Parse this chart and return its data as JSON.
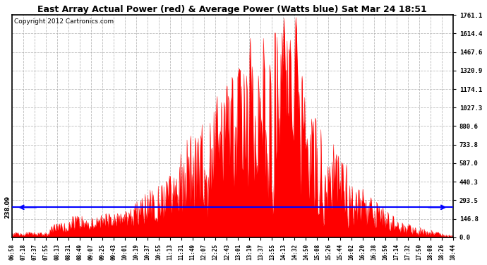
{
  "title": "East Array Actual Power (red) & Average Power (Watts blue) Sat Mar 24 18:51",
  "copyright": "Copyright 2012 Cartronics.com",
  "avg_power": 238.09,
  "y_max": 1761.1,
  "y_ticks": [
    0.0,
    146.8,
    293.5,
    440.3,
    587.0,
    733.8,
    880.6,
    1027.3,
    1174.1,
    1320.9,
    1467.6,
    1614.4,
    1761.1
  ],
  "background_color": "#ffffff",
  "fill_color": "#ff0000",
  "avg_line_color": "#0000ff",
  "title_fontsize": 9,
  "copyright_fontsize": 6.5,
  "time_labels": [
    "06:58",
    "07:18",
    "07:37",
    "07:55",
    "08:13",
    "08:31",
    "08:49",
    "09:07",
    "09:25",
    "09:43",
    "10:01",
    "10:19",
    "10:37",
    "10:55",
    "11:13",
    "11:31",
    "11:49",
    "12:07",
    "12:25",
    "12:43",
    "13:01",
    "13:19",
    "13:37",
    "13:55",
    "14:13",
    "14:32",
    "14:50",
    "15:08",
    "15:26",
    "15:44",
    "16:02",
    "16:20",
    "16:38",
    "16:56",
    "17:14",
    "17:32",
    "17:50",
    "18:08",
    "18:26",
    "18:44"
  ]
}
